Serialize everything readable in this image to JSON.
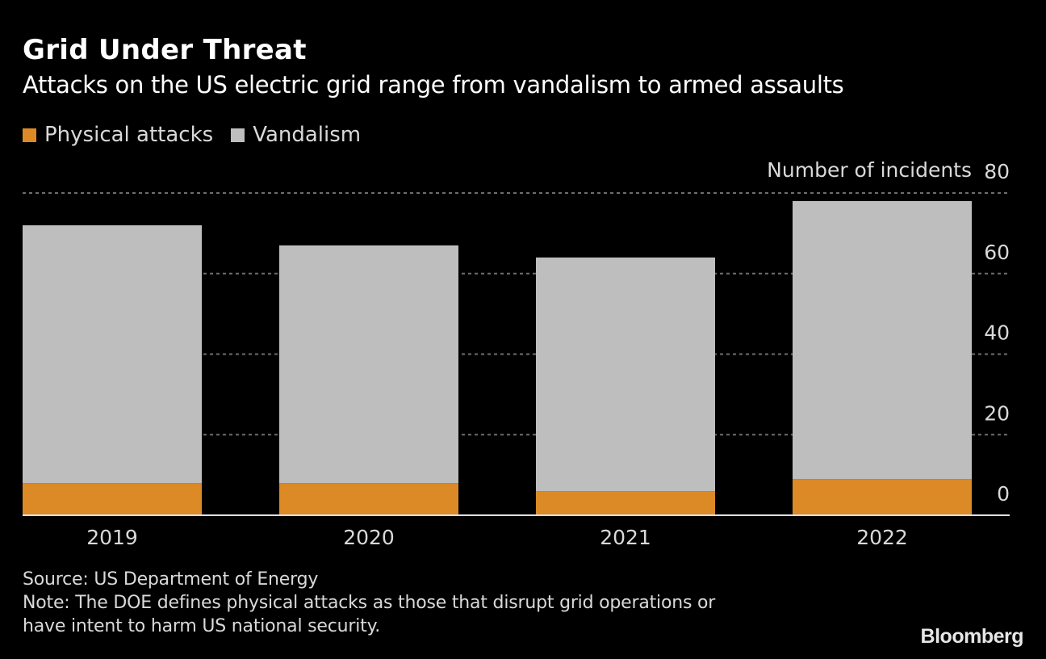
{
  "header": {
    "title": "Grid Under Threat",
    "subtitle": "Attacks on the US electric grid range from vandalism to armed assaults"
  },
  "legend": [
    {
      "label": "Physical attacks",
      "color": "#dc8a26"
    },
    {
      "label": "Vandalism",
      "color": "#bebebe"
    }
  ],
  "footer": {
    "source": "Source: US Department of Energy",
    "note_line1": "Note: The DOE defines physical attacks as those that disrupt grid operations or",
    "note_line2": "have intent to harm US national security."
  },
  "brand": "Bloomberg",
  "chart_data": {
    "type": "bar",
    "stacked": true,
    "title": "Grid Under Threat",
    "subtitle": "Attacks on the US electric grid range from vandalism to armed assaults",
    "categories": [
      "2019",
      "2020",
      "2021",
      "2022"
    ],
    "series": [
      {
        "name": "Physical attacks",
        "color": "#dc8a26",
        "values": [
          8,
          8,
          6,
          9
        ]
      },
      {
        "name": "Vandalism",
        "color": "#bebebe",
        "values": [
          64,
          59,
          58,
          69
        ]
      }
    ],
    "xlabel": "",
    "ylabel": "Number of incidents",
    "ylim": [
      0,
      80
    ],
    "yticks": [
      0,
      20,
      40,
      60,
      80
    ],
    "ytick_labels": [
      "0",
      "20",
      "40",
      "60",
      "80"
    ],
    "y_axis_side": "right",
    "grid": true,
    "legend_position": "top-left"
  }
}
